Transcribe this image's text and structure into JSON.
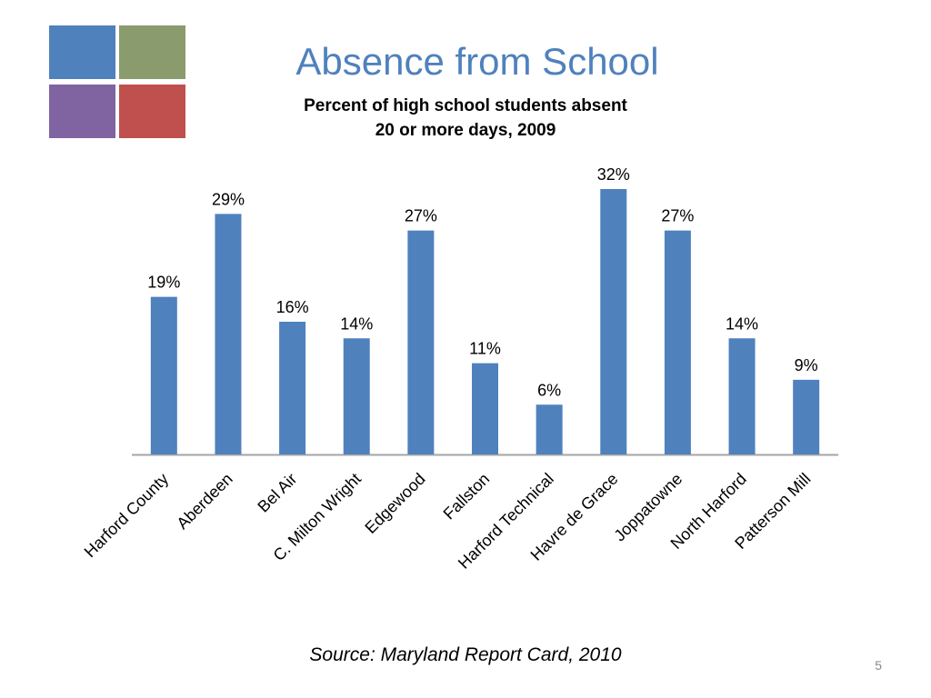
{
  "slide": {
    "title": "Absence from School",
    "subtitle_line1": "Percent of high school students absent",
    "subtitle_line2": "20 or more days, 2009",
    "source": "Source: Maryland Report Card, 2010",
    "page_number": "5",
    "logo_colors": [
      "#4F81BD",
      "#8A9B6E",
      "#8064A2",
      "#C0504D"
    ]
  },
  "chart_data": {
    "type": "bar",
    "title": "Percent of high school students absent 20 or more days, 2009",
    "categories": [
      "Harford County",
      "Aberdeen",
      "Bel Air",
      "C. Milton Wright",
      "Edgewood",
      "Fallston",
      "Harford Technical",
      "Havre de Grace",
      "Joppatowne",
      "North Harford",
      "Patterson Mill"
    ],
    "values": [
      19,
      29,
      16,
      14,
      27,
      11,
      6,
      32,
      27,
      14,
      9
    ],
    "value_labels": [
      "19%",
      "29%",
      "16%",
      "14%",
      "27%",
      "11%",
      "6%",
      "32%",
      "27%",
      "14%",
      "9%"
    ],
    "ylim": [
      0,
      32
    ],
    "grid": false,
    "bar_color": "#4F81BD",
    "axis_color": "#A6A6A6"
  }
}
